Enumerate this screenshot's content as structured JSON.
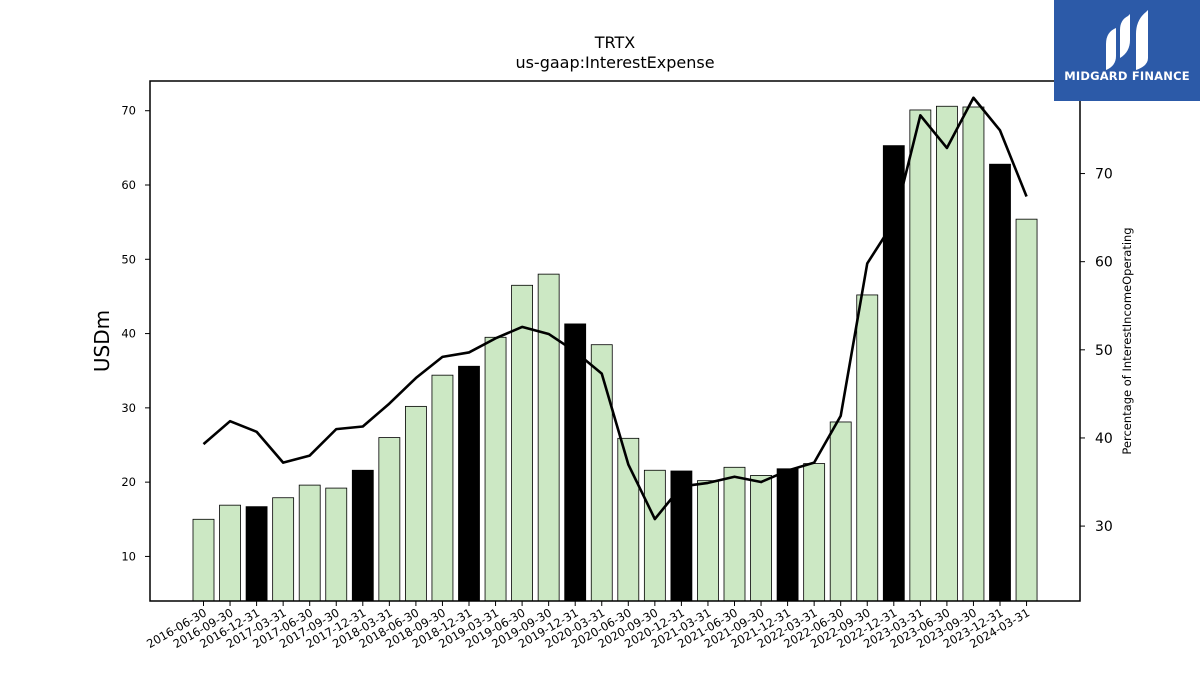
{
  "chart_data": {
    "type": "bar",
    "title": "TRTX",
    "subtitle": "us-gaap:InterestExpense",
    "ylabel": "USDm",
    "y2label": "Percentage of InterestIncomeOperating",
    "ylim": [
      4,
      74
    ],
    "y2lim": [
      21.5,
      80.5
    ],
    "yticks": [
      10,
      20,
      30,
      40,
      50,
      60,
      70
    ],
    "y2ticks": [
      30,
      40,
      50,
      60,
      70
    ],
    "categories": [
      "2016-06-30",
      "2016-09-30",
      "2016-12-31",
      "2017-03-31",
      "2017-06-30",
      "2017-09-30",
      "2017-12-31",
      "2018-03-31",
      "2018-06-30",
      "2018-09-30",
      "2018-12-31",
      "2019-03-31",
      "2019-06-30",
      "2019-09-30",
      "2019-12-31",
      "2020-03-31",
      "2020-06-30",
      "2020-09-30",
      "2020-12-31",
      "2021-03-31",
      "2021-06-30",
      "2021-09-30",
      "2021-12-31",
      "2022-03-31",
      "2022-06-30",
      "2022-09-30",
      "2022-12-31",
      "2023-03-31",
      "2023-06-30",
      "2023-09-30",
      "2023-12-31",
      "2024-03-31"
    ],
    "series": [
      {
        "type": "bar",
        "values": [
          15.0,
          16.9,
          16.7,
          17.9,
          19.6,
          19.2,
          21.6,
          26.0,
          30.2,
          34.4,
          35.6,
          39.5,
          46.5,
          48.0,
          41.3,
          38.5,
          25.9,
          21.6,
          21.5,
          20.2,
          22.0,
          20.9,
          21.8,
          22.5,
          28.1,
          45.2,
          65.3,
          70.1,
          70.6,
          70.5,
          62.8,
          55.4
        ],
        "year_end_color": "#000000",
        "color": "#cce8c4"
      },
      {
        "type": "line",
        "axis": "right",
        "values": [
          39.3,
          41.9,
          40.7,
          37.2,
          38.0,
          41.0,
          41.3,
          43.9,
          46.8,
          49.2,
          49.7,
          51.3,
          52.6,
          51.8,
          49.8,
          47.3,
          37.0,
          30.8,
          34.5,
          34.9,
          35.6,
          35.0,
          36.3,
          37.2,
          42.5,
          59.8,
          64.5,
          76.6,
          72.9,
          78.6,
          74.9,
          67.4
        ],
        "color": "#000000"
      }
    ],
    "grid": false,
    "legend": "none"
  },
  "logo": {
    "text": "MIDGARD FINANCE",
    "background": "#2c5aa8"
  }
}
